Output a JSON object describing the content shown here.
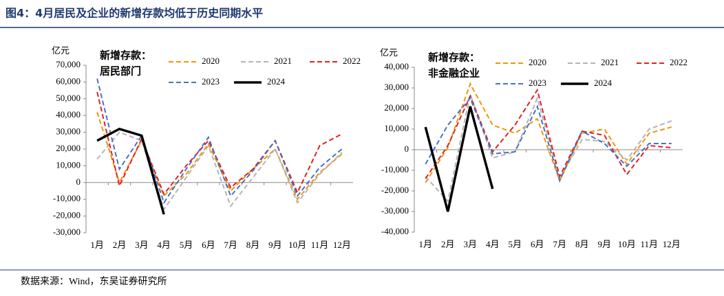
{
  "title": "图4：4月居民及企业的新增存款均低于历史同期水平",
  "source": "数据来源：Wind，东吴证券研究所",
  "chart_data": [
    {
      "type": "line",
      "y_label": "亿元",
      "annotation": [
        "新增存款：",
        "居民部门"
      ],
      "categories": [
        "1月",
        "2月",
        "3月",
        "4月",
        "5月",
        "6月",
        "7月",
        "8月",
        "9月",
        "10月",
        "11月",
        "12月"
      ],
      "ylim": [
        -30000,
        70000
      ],
      "yticks": [
        {
          "value": -30000,
          "label": "-30,000"
        },
        {
          "value": -20000,
          "label": "-20,000"
        },
        {
          "value": -10000,
          "label": "-10,000"
        },
        0,
        {
          "value": 10000,
          "label": "10,000"
        },
        {
          "value": 20000,
          "label": "20,000"
        },
        {
          "value": 30000,
          "label": "30,000"
        },
        {
          "value": 40000,
          "label": "40,000"
        },
        {
          "value": 50000,
          "label": "50,000"
        },
        {
          "value": 60000,
          "label": "60,000"
        },
        {
          "value": 70000,
          "label": "70,000"
        }
      ],
      "series": [
        {
          "name": "2020",
          "color": "#f0940a",
          "dashed": true,
          "values": [
            42000,
            0,
            25000,
            -8000,
            5000,
            23000,
            -5000,
            8000,
            20000,
            -10000,
            6000,
            17000
          ]
        },
        {
          "name": "2021",
          "color": "#b4b4b4",
          "dashed": true,
          "values": [
            14000,
            30000,
            25000,
            -16000,
            3000,
            22000,
            -14000,
            3000,
            20000,
            -12000,
            5000,
            18000
          ]
        },
        {
          "name": "2022",
          "color": "#e02020",
          "dashed": true,
          "values": [
            54000,
            -2000,
            26000,
            -7000,
            10000,
            25000,
            -3000,
            8000,
            25000,
            -6000,
            22000,
            29000
          ]
        },
        {
          "name": "2023",
          "color": "#4472c4",
          "dashed": true,
          "values": [
            62000,
            8000,
            28000,
            -12000,
            8000,
            27000,
            -8000,
            7000,
            25000,
            -8000,
            9000,
            20000
          ]
        },
        {
          "name": "2024",
          "color": "#000000",
          "dashed": false,
          "values": [
            25000,
            32000,
            28000,
            -19000,
            null,
            null,
            null,
            null,
            null,
            null,
            null,
            null
          ]
        }
      ]
    },
    {
      "type": "line",
      "y_label": "亿元",
      "annotation": [
        "新增存款：",
        "非金融企业"
      ],
      "categories": [
        "1月",
        "2月",
        "3月",
        "4月",
        "5月",
        "6月",
        "7月",
        "8月",
        "9月",
        "10月",
        "11月",
        "12月"
      ],
      "ylim": [
        -40000,
        40000
      ],
      "yticks": [
        {
          "value": -40000,
          "label": "-40,000"
        },
        {
          "value": -30000,
          "label": "-30,000"
        },
        {
          "value": -20000,
          "label": "-20,000"
        },
        {
          "value": -10000,
          "label": "-10,000"
        },
        0,
        {
          "value": 10000,
          "label": "10,000"
        },
        {
          "value": 20000,
          "label": "20,000"
        },
        {
          "value": 30000,
          "label": "30,000"
        },
        {
          "value": 40000,
          "label": "40,000"
        }
      ],
      "series": [
        {
          "name": "2020",
          "color": "#f0940a",
          "dashed": true,
          "values": [
            -16000,
            1000,
            32000,
            12000,
            8000,
            15000,
            -15000,
            8000,
            10000,
            -7000,
            8000,
            11000
          ]
        },
        {
          "name": "2021",
          "color": "#b4b4b4",
          "dashed": true,
          "values": [
            -13000,
            -25000,
            27000,
            -4000,
            -1000,
            25000,
            -14000,
            5000,
            4000,
            -5000,
            10000,
            14000
          ]
        },
        {
          "name": "2022",
          "color": "#e02020",
          "dashed": true,
          "values": [
            -14000,
            2000,
            26000,
            -1000,
            12000,
            29000,
            -13000,
            9000,
            7000,
            -12000,
            2000,
            1000
          ]
        },
        {
          "name": "2023",
          "color": "#4472c4",
          "dashed": true,
          "values": [
            -7000,
            12000,
            25000,
            -2000,
            -1000,
            21000,
            -15000,
            9000,
            3000,
            -8000,
            3000,
            3000
          ]
        },
        {
          "name": "2024",
          "color": "#000000",
          "dashed": false,
          "values": [
            11000,
            -30000,
            21000,
            -19000,
            null,
            null,
            null,
            null,
            null,
            null,
            null,
            null
          ]
        }
      ]
    }
  ]
}
